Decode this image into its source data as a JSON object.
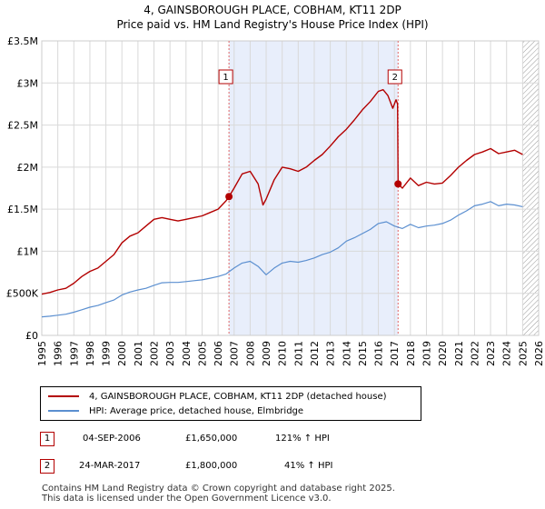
{
  "title_line1": "4, GAINSBOROUGH PLACE, COBHAM, KT11 2DP",
  "title_line2": "Price paid vs. HM Land Registry's House Price Index (HPI)",
  "chart_data": {
    "type": "line",
    "title": "4, GAINSBOROUGH PLACE, COBHAM, KT11 2DP",
    "subtitle": "Price paid vs. HM Land Registry's House Price Index (HPI)",
    "xlabel": "",
    "ylabel": "",
    "xlim": [
      1995,
      2026
    ],
    "ylim": [
      0,
      3500000
    ],
    "yticks": [
      {
        "value": 0,
        "label": "£0"
      },
      {
        "value": 500000,
        "label": "£500K"
      },
      {
        "value": 1000000,
        "label": "£1M"
      },
      {
        "value": 1500000,
        "label": "£1.5M"
      },
      {
        "value": 2000000,
        "label": "£2M"
      },
      {
        "value": 2500000,
        "label": "£2.5M"
      },
      {
        "value": 3000000,
        "label": "£3M"
      },
      {
        "value": 3500000,
        "label": "£3.5M"
      }
    ],
    "xticks": [
      "1995",
      "1996",
      "1997",
      "1998",
      "1999",
      "2000",
      "2001",
      "2002",
      "2003",
      "2004",
      "2005",
      "2006",
      "2007",
      "2008",
      "2009",
      "2010",
      "2011",
      "2012",
      "2013",
      "2014",
      "2015",
      "2016",
      "2017",
      "2018",
      "2019",
      "2020",
      "2021",
      "2022",
      "2023",
      "2024",
      "2025",
      "2026"
    ],
    "grid": true,
    "shaded_period": [
      2006.68,
      2017.23
    ],
    "hatched_from": 2025.0,
    "series": [
      {
        "name": "4, GAINSBOROUGH PLACE, COBHAM, KT11 2DP (detached house)",
        "color": "#b30000",
        "x": [
          1995.0,
          1995.5,
          1996.0,
          1996.5,
          1997.0,
          1997.5,
          1998.0,
          1998.5,
          1999.0,
          1999.5,
          2000.0,
          2000.5,
          2001.0,
          2001.5,
          2002.0,
          2002.5,
          2003.0,
          2003.5,
          2004.0,
          2004.5,
          2005.0,
          2005.5,
          2006.0,
          2006.5,
          2006.68,
          2007.0,
          2007.5,
          2008.0,
          2008.5,
          2008.8,
          2009.0,
          2009.5,
          2010.0,
          2010.5,
          2011.0,
          2011.5,
          2012.0,
          2012.5,
          2013.0,
          2013.5,
          2014.0,
          2014.5,
          2015.0,
          2015.5,
          2016.0,
          2016.3,
          2016.6,
          2016.9,
          2017.1,
          2017.2,
          2017.23,
          2017.5,
          2018.0,
          2018.5,
          2019.0,
          2019.5,
          2020.0,
          2020.5,
          2021.0,
          2021.5,
          2022.0,
          2022.5,
          2023.0,
          2023.5,
          2024.0,
          2024.5,
          2025.0
        ],
        "values": [
          490000,
          510000,
          540000,
          560000,
          620000,
          700000,
          760000,
          800000,
          880000,
          960000,
          1100000,
          1180000,
          1220000,
          1300000,
          1380000,
          1400000,
          1380000,
          1360000,
          1380000,
          1400000,
          1420000,
          1460000,
          1500000,
          1600000,
          1650000,
          1750000,
          1920000,
          1950000,
          1800000,
          1550000,
          1620000,
          1850000,
          2000000,
          1980000,
          1950000,
          2000000,
          2080000,
          2150000,
          2250000,
          2360000,
          2450000,
          2560000,
          2680000,
          2780000,
          2900000,
          2920000,
          2850000,
          2700000,
          2800000,
          2750000,
          1800000,
          1750000,
          1870000,
          1780000,
          1820000,
          1800000,
          1810000,
          1900000,
          2000000,
          2080000,
          2150000,
          2180000,
          2220000,
          2160000,
          2180000,
          2200000,
          2150000
        ]
      },
      {
        "name": "HPI: Average price, detached house, Elmbridge",
        "color": "#5b8fd0",
        "x": [
          1995.0,
          1995.5,
          1996.0,
          1996.5,
          1997.0,
          1997.5,
          1998.0,
          1998.5,
          1999.0,
          1999.5,
          2000.0,
          2000.5,
          2001.0,
          2001.5,
          2002.0,
          2002.5,
          2003.0,
          2003.5,
          2004.0,
          2004.5,
          2005.0,
          2005.5,
          2006.0,
          2006.5,
          2007.0,
          2007.5,
          2008.0,
          2008.5,
          2009.0,
          2009.5,
          2010.0,
          2010.5,
          2011.0,
          2011.5,
          2012.0,
          2012.5,
          2013.0,
          2013.5,
          2014.0,
          2014.5,
          2015.0,
          2015.5,
          2016.0,
          2016.5,
          2017.0,
          2017.5,
          2018.0,
          2018.5,
          2019.0,
          2019.5,
          2020.0,
          2020.5,
          2021.0,
          2021.5,
          2022.0,
          2022.5,
          2023.0,
          2023.5,
          2024.0,
          2024.5,
          2025.0
        ],
        "values": [
          220000,
          228000,
          240000,
          252000,
          275000,
          305000,
          335000,
          355000,
          390000,
          420000,
          480000,
          515000,
          540000,
          560000,
          595000,
          625000,
          630000,
          630000,
          640000,
          650000,
          660000,
          680000,
          700000,
          730000,
          800000,
          860000,
          880000,
          820000,
          720000,
          800000,
          860000,
          880000,
          870000,
          890000,
          920000,
          960000,
          990000,
          1040000,
          1120000,
          1160000,
          1210000,
          1260000,
          1330000,
          1350000,
          1300000,
          1270000,
          1320000,
          1280000,
          1300000,
          1310000,
          1330000,
          1370000,
          1430000,
          1480000,
          1540000,
          1560000,
          1590000,
          1540000,
          1560000,
          1550000,
          1530000
        ]
      }
    ],
    "sales": [
      {
        "label": "1",
        "x": 2006.68,
        "value": 1650000
      },
      {
        "label": "2",
        "x": 2017.23,
        "value": 1800000
      }
    ]
  },
  "legend": {
    "property": "4, GAINSBOROUGH PLACE, COBHAM, KT11 2DP (detached house)",
    "hpi": "HPI: Average price, detached house, Elmbridge"
  },
  "transactions": [
    {
      "num": "1",
      "date": "04-SEP-2006",
      "price": "£1,650,000",
      "hpi": "121% ↑ HPI"
    },
    {
      "num": "2",
      "date": "24-MAR-2017",
      "price": "£1,800,000",
      "hpi": "41% ↑ HPI"
    }
  ],
  "footer": {
    "line1": "Contains HM Land Registry data © Crown copyright and database right 2025.",
    "line2": "This data is licensed under the Open Government Licence v3.0."
  }
}
